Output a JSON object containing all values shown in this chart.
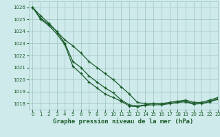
{
  "title": "Graphe pression niveau de la mer (hPa)",
  "background_color": "#ceeaea",
  "grid_color": "#a8c8c8",
  "line_color": "#1a5c2a",
  "xlim": [
    -0.5,
    23
  ],
  "ylim": [
    1017.5,
    1026.5
  ],
  "yticks": [
    1018,
    1019,
    1020,
    1021,
    1022,
    1023,
    1024,
    1025,
    1026
  ],
  "xticks": [
    0,
    1,
    2,
    3,
    4,
    5,
    6,
    7,
    8,
    9,
    10,
    11,
    12,
    13,
    14,
    15,
    16,
    17,
    18,
    19,
    20,
    21,
    22,
    23
  ],
  "series": [
    [
      1026.0,
      1025.3,
      1024.7,
      1024.0,
      1023.3,
      1022.8,
      1022.2,
      1021.5,
      1021.0,
      1020.5,
      1020.0,
      1019.4,
      1018.8,
      1018.1,
      1018.0,
      1018.0,
      1018.0,
      1018.1,
      1018.2,
      1018.3,
      1018.1,
      1018.1,
      1018.3,
      1018.5
    ],
    [
      1026.0,
      1025.1,
      1024.6,
      1024.0,
      1023.0,
      1021.5,
      1021.0,
      1020.3,
      1019.8,
      1019.3,
      1018.9,
      1018.3,
      1017.9,
      1017.8,
      1017.9,
      1018.0,
      1017.95,
      1018.0,
      1018.1,
      1018.2,
      1018.0,
      1018.0,
      1018.2,
      1018.4
    ],
    [
      1026.0,
      1025.0,
      1024.5,
      1023.8,
      1022.9,
      1021.1,
      1020.5,
      1019.8,
      1019.3,
      1018.8,
      1018.5,
      1018.2,
      1017.8,
      1017.75,
      1017.85,
      1017.9,
      1017.9,
      1018.0,
      1018.1,
      1018.15,
      1017.95,
      1018.0,
      1018.15,
      1018.35
    ]
  ],
  "figsize": [
    3.2,
    2.0
  ],
  "dpi": 100
}
